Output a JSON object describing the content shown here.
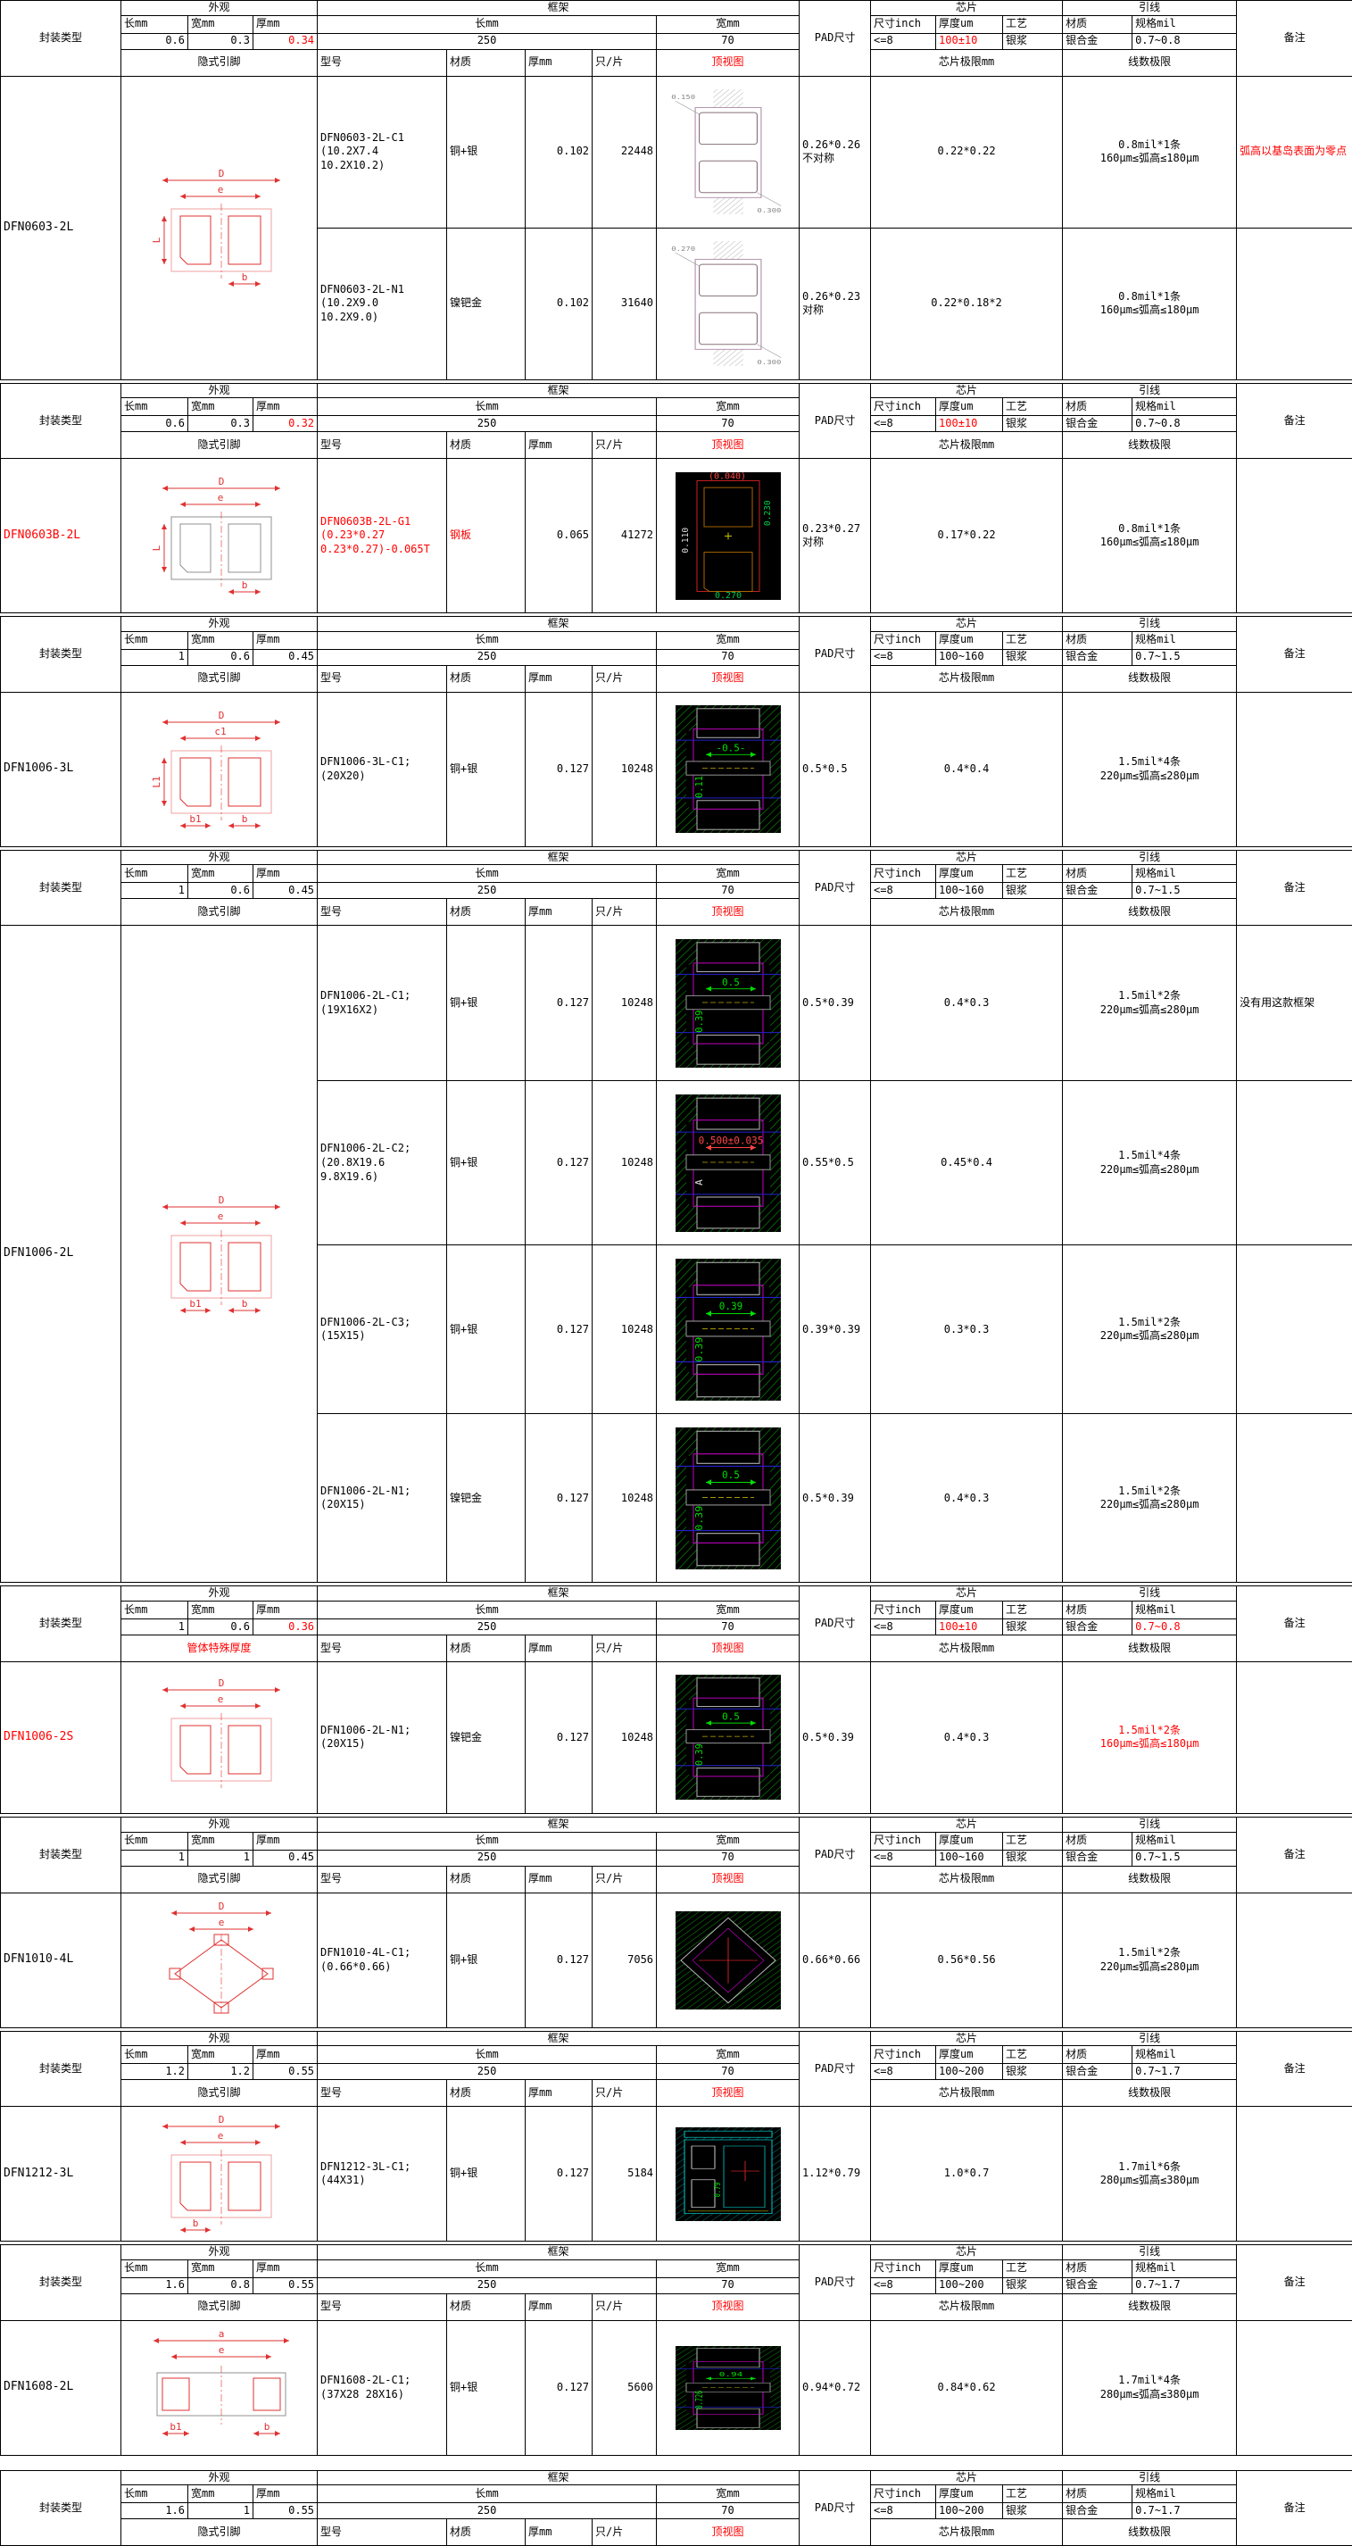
{
  "labels": {
    "package_type": "封装类型",
    "appearance": "外观",
    "frame": "框架",
    "len": "长mm",
    "wid": "宽mm",
    "thk": "厚mm",
    "pad": "PAD尺寸",
    "chip": "芯片",
    "chip_size": "尺寸inch",
    "chip_thick": "厚度um",
    "chip_process": "工艺",
    "wire": "引线",
    "wire_material": "材质",
    "wire_spec": "规格mil",
    "remark": "备注",
    "model": "型号",
    "material": "材质",
    "thick": "厚mm",
    "qty": "只/片",
    "topview": "顶视图",
    "chip_limit": "芯片极限mm",
    "wire_limit": "线数极限"
  },
  "colors": {
    "alert_red": "#ff0000",
    "cad_green": "#00dd00",
    "cad_magenta": "#c400c4",
    "cad_cyan": "#00cccc",
    "border_black": "#000000"
  },
  "sections": [
    {
      "name": "DFN0603-2L",
      "name_red": false,
      "pin_label": "隐式引脚",
      "pin_red": false,
      "dims": {
        "len": "0.6",
        "wid": "0.3",
        "thk": "0.34",
        "thk_red": true
      },
      "frame": {
        "len": "250",
        "wid": "70"
      },
      "chip": {
        "size": "<=8",
        "thick": "100±10",
        "thick_red": true,
        "process": "银浆"
      },
      "wire": {
        "material": "银合金",
        "spec": "0.7~0.8",
        "spec_red": false
      },
      "diagram": {
        "variant": "pads",
        "labels": {
          "top": "D",
          "inner": "e",
          "left": "L",
          "br": "b"
        }
      },
      "rows": [
        {
          "model": [
            "DFN0603-2L-C1",
            "(10.2X7.4",
            "10.2X10.2)"
          ],
          "material": "铜+银",
          "thick": "0.102",
          "qty": "22448",
          "topview": {
            "style": "w",
            "labels": [
              {
                "t": "0.150",
                "c": "#888888"
              },
              {
                "t": "0.300",
                "c": "#888888"
              }
            ]
          },
          "pad": [
            "0.26*0.26",
            "不对称"
          ],
          "chip_limit": "0.22*0.22",
          "wire_limit": [
            "0.8mil*1条",
            "160μm≤弧高≤180μm"
          ],
          "remark": "弧高以基岛表面为零点",
          "remark_red": true
        },
        {
          "model": [
            "DFN0603-2L-N1",
            "(10.2X9.0",
            "10.2X9.0)"
          ],
          "material": "镍钯金",
          "thick": "0.102",
          "qty": "31640",
          "topview": {
            "style": "w",
            "labels": [
              {
                "t": "0.270",
                "c": "#888888"
              },
              {
                "t": "0.300",
                "c": "#888888"
              }
            ]
          },
          "pad": [
            "0.26*0.23",
            "对称"
          ],
          "chip_limit": "0.22*0.18*2",
          "wire_limit": [
            "0.8mil*1条",
            "160μm≤弧高≤180μm"
          ],
          "remark": ""
        }
      ]
    },
    {
      "name": "DFN0603B-2L",
      "name_red": true,
      "pin_label": "隐式引脚",
      "pin_red": false,
      "dims": {
        "len": "0.6",
        "wid": "0.3",
        "thk": "0.32",
        "thk_red": true
      },
      "frame": {
        "len": "250",
        "wid": "70"
      },
      "chip": {
        "size": "<=8",
        "thick": "100±10",
        "thick_red": true,
        "process": "银浆"
      },
      "wire": {
        "material": "银合金",
        "spec": "0.7~0.8",
        "spec_red": false
      },
      "diagram": {
        "variant": "pads-gray",
        "labels": {
          "top": "D",
          "inner": "e",
          "left": "L",
          "br": "b"
        }
      },
      "rows": [
        {
          "model": [
            "DFN0603B-2L-G1",
            "(0.23*0.27",
            "0.23*0.27)-0.065T"
          ],
          "model_red": true,
          "material": "钢板",
          "material_red": true,
          "thick": "0.065",
          "qty": "41272",
          "topview": {
            "style": "q",
            "labels": [
              {
                "t": "(0.040)",
                "c": "#ff4444"
              },
              {
                "t": "0.110",
                "c": "#dddddd"
              },
              {
                "t": "0.230",
                "c": "#00cc44"
              },
              {
                "t": "0.270",
                "c": "#00cc44"
              }
            ]
          },
          "pad": [
            "0.23*0.27",
            "对称"
          ],
          "chip_limit": "0.17*0.22",
          "wire_limit": [
            "0.8mil*1条",
            "160μm≤弧高≤180μm"
          ],
          "remark": ""
        }
      ]
    },
    {
      "name": "DFN1006-3L",
      "name_red": false,
      "pin_label": "隐式引脚",
      "pin_red": false,
      "dims": {
        "len": "1",
        "wid": "0.6",
        "thk": "0.45",
        "thk_red": false
      },
      "frame": {
        "len": "250",
        "wid": "70"
      },
      "chip": {
        "size": "<=8",
        "thick": "100~160",
        "thick_red": false,
        "process": "银浆"
      },
      "wire": {
        "material": "银合金",
        "spec": "0.7~1.5",
        "spec_red": false
      },
      "diagram": {
        "variant": "pads",
        "labels": {
          "top": "D",
          "inner": "c1",
          "left": "L1",
          "bl": "b1",
          "br": "b"
        }
      },
      "rows": [
        {
          "model": [
            "DFN1006-3L-C1;",
            "(20X20)"
          ],
          "material": "铜+银",
          "thick": "0.127",
          "qty": "10248",
          "topview": {
            "style": "g",
            "labels": [
              {
                "t": "-0.5-"
              },
              {
                "t": "0.11",
                "rot": true
              }
            ]
          },
          "pad": "0.5*0.5",
          "chip_limit": "0.4*0.4",
          "wire_limit": [
            "1.5mil*4条",
            "220μm≤弧高≤280μm"
          ],
          "remark": ""
        }
      ]
    },
    {
      "name": "DFN1006-2L",
      "name_red": false,
      "pin_label": "隐式引脚",
      "pin_red": false,
      "dims": {
        "len": "1",
        "wid": "0.6",
        "thk": "0.45",
        "thk_red": false
      },
      "frame": {
        "len": "250",
        "wid": "70"
      },
      "chip": {
        "size": "<=8",
        "thick": "100~160",
        "thick_red": false,
        "process": "银浆"
      },
      "wire": {
        "material": "银合金",
        "spec": "0.7~1.5",
        "spec_red": false
      },
      "diagram": {
        "variant": "pads",
        "labels": {
          "top": "D",
          "inner": "e",
          "bl": "b1",
          "br": "b"
        }
      },
      "rows": [
        {
          "model": [
            "DFN1006-2L-C1;",
            "(19X16X2)"
          ],
          "material": "铜+银",
          "thick": "0.127",
          "qty": "10248",
          "topview": {
            "style": "g",
            "labels": [
              {
                "t": "0.5"
              },
              {
                "t": "0.39",
                "rot": true
              }
            ]
          },
          "pad": "0.5*0.39",
          "chip_limit": "0.4*0.3",
          "wire_limit": [
            "1.5mil*2条",
            "220μm≤弧高≤280μm"
          ],
          "remark": "没有用这款框架"
        },
        {
          "model": [
            "DFN1006-2L-C2;",
            "(20.8X19.6",
            "9.8X19.6)"
          ],
          "material": "铜+银",
          "thick": "0.127",
          "qty": "10248",
          "topview": {
            "style": "g",
            "labels": [
              {
                "t": "0.500±0.035",
                "c": "#ff4444"
              },
              {
                "t": "A",
                "c": "#dddddd",
                "rot": true
              }
            ]
          },
          "pad": "0.55*0.5",
          "chip_limit": "0.45*0.4",
          "wire_limit": [
            "1.5mil*4条",
            "220μm≤弧高≤280μm"
          ],
          "remark": ""
        },
        {
          "model": [
            "DFN1006-2L-C3;",
            "(15X15)"
          ],
          "material": "铜+银",
          "thick": "0.127",
          "qty": "10248",
          "topview": {
            "style": "g",
            "labels": [
              {
                "t": "0.39"
              },
              {
                "t": "0.39",
                "rot": true
              }
            ]
          },
          "pad": "0.39*0.39",
          "chip_limit": "0.3*0.3",
          "wire_limit": [
            "1.5mil*2条",
            "220μm≤弧高≤280μm"
          ],
          "remark": ""
        },
        {
          "model": [
            "DFN1006-2L-N1;",
            "(20X15)"
          ],
          "material": "镍钯金",
          "thick": "0.127",
          "qty": "10248",
          "topview": {
            "style": "g",
            "labels": [
              {
                "t": "0.5"
              },
              {
                "t": "0.39",
                "rot": true
              }
            ]
          },
          "pad": "0.5*0.39",
          "chip_limit": "0.4*0.3",
          "wire_limit": [
            "1.5mil*2条",
            "220μm≤弧高≤280μm"
          ],
          "remark": ""
        }
      ]
    },
    {
      "name": "DFN1006-2S",
      "name_red": true,
      "pin_label": "管体特殊厚度",
      "pin_red": true,
      "dims": {
        "len": "1",
        "wid": "0.6",
        "thk": "0.36",
        "thk_red": true
      },
      "frame": {
        "len": "250",
        "wid": "70"
      },
      "chip": {
        "size": "<=8",
        "thick": "100±10",
        "thick_red": true,
        "process": "银浆"
      },
      "wire": {
        "material": "银合金",
        "spec": "0.7~0.8",
        "spec_red": true
      },
      "diagram": {
        "variant": "pads",
        "labels": {
          "top": "D",
          "inner": "e"
        }
      },
      "rows": [
        {
          "model": [
            "DFN1006-2L-N1;",
            "(20X15)"
          ],
          "material": "镍钯金",
          "thick": "0.127",
          "qty": "10248",
          "topview": {
            "style": "g",
            "labels": [
              {
                "t": "0.5"
              },
              {
                "t": "0.39",
                "rot": true
              }
            ]
          },
          "pad": "0.5*0.39",
          "chip_limit": "0.4*0.3",
          "wire_limit": [
            "1.5mil*2条",
            "160μm≤弧高≤180μm"
          ],
          "wire_red": true,
          "remark": ""
        }
      ]
    },
    {
      "name": "DFN1010-4L",
      "name_red": false,
      "pin_label": "隐式引脚",
      "pin_red": false,
      "dims": {
        "len": "1",
        "wid": "1",
        "thk": "0.45",
        "thk_red": false
      },
      "frame": {
        "len": "250",
        "wid": "70"
      },
      "chip": {
        "size": "<=8",
        "thick": "100~160",
        "thick_red": false,
        "process": "银浆"
      },
      "wire": {
        "material": "银合金",
        "spec": "0.7~1.5",
        "spec_red": false
      },
      "diagram": {
        "variant": "diamond",
        "labels": {
          "top": "D",
          "inner": "e"
        }
      },
      "rows": [
        {
          "model": [
            "DFN1010-4L-C1;",
            "(0.66*0.66)"
          ],
          "material": "铜+银",
          "thick": "0.127",
          "qty": "7056",
          "topview": {
            "style": "d",
            "labels": []
          },
          "pad": "0.66*0.66",
          "chip_limit": "0.56*0.56",
          "wire_limit": [
            "1.5mil*2条",
            "220μm≤弧高≤280μm"
          ],
          "remark": ""
        }
      ]
    },
    {
      "name": "DFN1212-3L",
      "name_red": false,
      "pin_label": "隐式引脚",
      "pin_red": false,
      "dims": {
        "len": "1.2",
        "wid": "1.2",
        "thk": "0.55",
        "thk_red": false
      },
      "frame": {
        "len": "250",
        "wid": "70"
      },
      "chip": {
        "size": "<=8",
        "thick": "100~200",
        "thick_red": false,
        "process": "银浆"
      },
      "wire": {
        "material": "银合金",
        "spec": "0.7~1.7",
        "spec_red": false
      },
      "diagram": {
        "variant": "pads",
        "labels": {
          "top": "D",
          "inner": "e",
          "bl": "b"
        }
      },
      "rows": [
        {
          "model": [
            "DFN1212-3L-C1;",
            "(44X31)"
          ],
          "material": "铜+银",
          "thick": "0.127",
          "qty": "5184",
          "topview": {
            "style": "c",
            "labels": [
              {
                "t": "0.79",
                "rot": true
              }
            ]
          },
          "pad": "1.12*0.79",
          "chip_limit": "1.0*0.7",
          "wire_limit": [
            "1.7mil*6条",
            "280μm≤弧高≤380μm"
          ],
          "remark": ""
        }
      ]
    },
    {
      "name": "DFN1608-2L",
      "name_red": false,
      "pin_label": "隐式引脚",
      "pin_red": false,
      "dims": {
        "len": "1.6",
        "wid": "0.8",
        "thk": "0.55",
        "thk_red": false
      },
      "frame": {
        "len": "250",
        "wid": "70"
      },
      "chip": {
        "size": "<=8",
        "thick": "100~200",
        "thick_red": false,
        "process": "银浆"
      },
      "wire": {
        "material": "银合金",
        "spec": "0.7~1.7",
        "spec_red": false
      },
      "diagram": {
        "variant": "wide",
        "labels": {
          "top": "a",
          "inner": "e",
          "bl": "b1",
          "br": "b"
        }
      },
      "rows": [
        {
          "model": [
            "DFN1608-2L-C1;",
            "(37X28 28X16)"
          ],
          "material": "铜+银",
          "thick": "0.127",
          "qty": "5600",
          "topview": {
            "style": "g",
            "labels": [
              {
                "t": "0.94"
              },
              {
                "t": "0.726",
                "rot": true
              }
            ]
          },
          "pad": "0.94*0.72",
          "chip_limit": "0.84*0.62",
          "wire_limit": [
            "1.7mil*4条",
            "280μm≤弧高≤380μm"
          ],
          "remark": ""
        }
      ]
    },
    {
      "name": "",
      "name_red": false,
      "pin_label": "隐式引脚",
      "pin_red": false,
      "dims": {
        "len": "1.6",
        "wid": "1",
        "thk": "0.55",
        "thk_red": false
      },
      "frame": {
        "len": "250",
        "wid": "70"
      },
      "chip": {
        "size": "<=8",
        "thick": "100~200",
        "thick_red": false,
        "process": "银浆"
      },
      "wire": {
        "material": "银合金",
        "spec": "0.7~1.7",
        "spec_red": false
      },
      "diagram": {
        "variant": "pads",
        "labels": {}
      },
      "rows": []
    }
  ]
}
